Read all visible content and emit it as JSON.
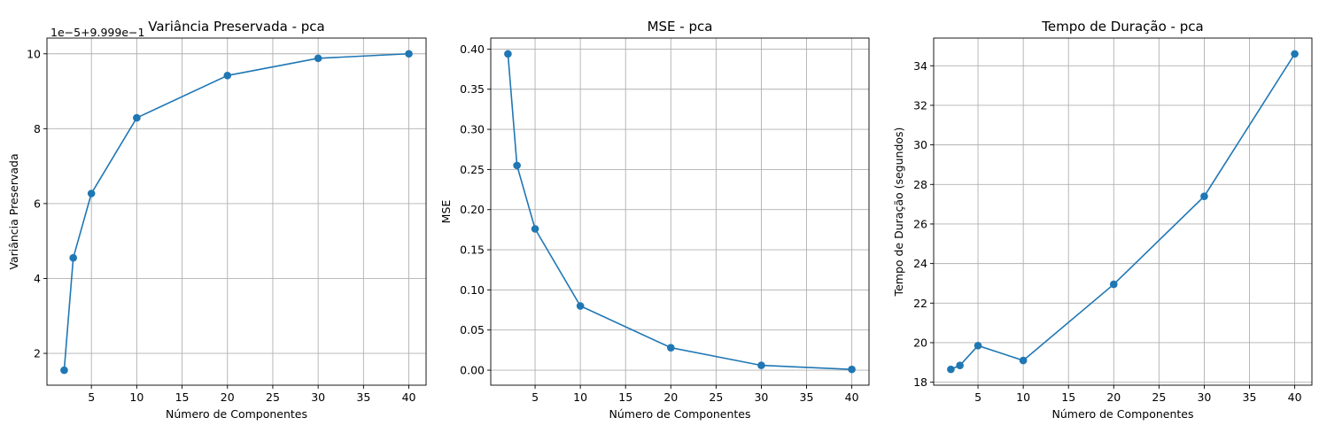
{
  "chart_data": [
    {
      "type": "line",
      "title": "Variância Preservada - pca",
      "xlabel": "Número de Componentes",
      "ylabel": "Variância Preservada",
      "offset_text": "1e−5+9.999e−1",
      "x": [
        2,
        3,
        5,
        10,
        20,
        30,
        40
      ],
      "series": [
        {
          "values": [
            1.55,
            4.55,
            6.27,
            8.29,
            9.42,
            9.88,
            10.0
          ]
        }
      ],
      "xlim": [
        0.1,
        41.9
      ],
      "ylim": [
        1.15,
        10.42
      ],
      "xticks": [
        5,
        10,
        15,
        20,
        25,
        30,
        35,
        40
      ],
      "xtick_labels": [
        "5",
        "10",
        "15",
        "20",
        "25",
        "30",
        "35",
        "40"
      ],
      "yticks": [
        2,
        4,
        6,
        8,
        10
      ],
      "ytick_labels": [
        "2",
        "4",
        "6",
        "8",
        "10"
      ],
      "color": "#1f77b4",
      "grid": true,
      "marker": "circle"
    },
    {
      "type": "line",
      "title": "MSE - pca",
      "xlabel": "Número de Componentes",
      "ylabel": "MSE",
      "x": [
        2,
        3,
        5,
        10,
        20,
        30,
        40
      ],
      "series": [
        {
          "values": [
            0.394,
            0.255,
            0.176,
            0.08,
            0.028,
            0.006,
            0.001
          ]
        }
      ],
      "xlim": [
        0.1,
        41.9
      ],
      "ylim": [
        -0.0187,
        0.4137
      ],
      "xticks": [
        5,
        10,
        15,
        20,
        25,
        30,
        35,
        40
      ],
      "xtick_labels": [
        "5",
        "10",
        "15",
        "20",
        "25",
        "30",
        "35",
        "40"
      ],
      "yticks": [
        0.0,
        0.05,
        0.1,
        0.15,
        0.2,
        0.25,
        0.3,
        0.35,
        0.4
      ],
      "ytick_labels": [
        "0.00",
        "0.05",
        "0.10",
        "0.15",
        "0.20",
        "0.25",
        "0.30",
        "0.35",
        "0.40"
      ],
      "color": "#1f77b4",
      "grid": true,
      "marker": "circle"
    },
    {
      "type": "line",
      "title": "Tempo de Duração - pca",
      "xlabel": "Número de Componentes",
      "ylabel": "Tempo de Duração (segundos)",
      "x": [
        2,
        3,
        5,
        10,
        20,
        30,
        40
      ],
      "series": [
        {
          "values": [
            18.65,
            18.85,
            19.85,
            19.1,
            22.95,
            27.4,
            34.6
          ]
        }
      ],
      "xlim": [
        0.1,
        41.9
      ],
      "ylim": [
        17.85,
        35.4
      ],
      "xticks": [
        5,
        10,
        15,
        20,
        25,
        30,
        35,
        40
      ],
      "xtick_labels": [
        "5",
        "10",
        "15",
        "20",
        "25",
        "30",
        "35",
        "40"
      ],
      "yticks": [
        18,
        20,
        22,
        24,
        26,
        28,
        30,
        32,
        34
      ],
      "ytick_labels": [
        "18",
        "20",
        "22",
        "24",
        "26",
        "28",
        "30",
        "32",
        "34"
      ],
      "color": "#1f77b4",
      "grid": true,
      "marker": "circle"
    }
  ]
}
